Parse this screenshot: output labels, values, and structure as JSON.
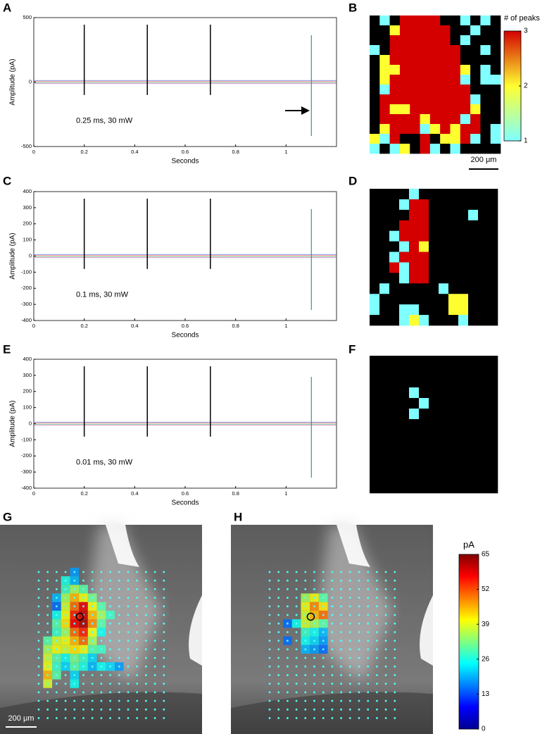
{
  "chart_data": [
    {
      "type": "line",
      "panel": "A",
      "ylabel": "Amplitude (pA)",
      "xlabel": "Seconds",
      "annotation": "0.25 ms, 30 mW",
      "xlim": [
        0,
        1.2
      ],
      "xticks": [
        0,
        0.2,
        0.4,
        0.6,
        0.8,
        1
      ],
      "ylim": [
        -500,
        500
      ],
      "yticks": [
        -500,
        0,
        500
      ],
      "stimuli": [
        0.2,
        0.45,
        0.7
      ]
    },
    {
      "type": "heatmap",
      "panel": "B",
      "colorbar_label": "# of peaks",
      "clim": [
        1,
        3
      ],
      "cticks": [
        1,
        2,
        3
      ],
      "scalebar": "200 μm",
      "colors": [
        "#7fffff",
        "#ffff30",
        "#d40000"
      ],
      "zero_color": "#000000",
      "cells": [
        [
          0,
          1,
          0,
          3,
          3,
          3,
          3,
          0,
          0,
          1,
          0,
          1,
          0
        ],
        [
          0,
          0,
          2,
          3,
          3,
          3,
          3,
          3,
          0,
          0,
          1,
          0,
          0
        ],
        [
          0,
          0,
          3,
          3,
          3,
          3,
          3,
          3,
          0,
          1,
          0,
          0,
          0
        ],
        [
          1,
          0,
          3,
          3,
          3,
          3,
          3,
          3,
          3,
          0,
          0,
          1,
          0
        ],
        [
          0,
          2,
          3,
          3,
          3,
          3,
          3,
          3,
          3,
          0,
          0,
          0,
          0
        ],
        [
          0,
          2,
          2,
          3,
          3,
          3,
          3,
          3,
          3,
          2,
          0,
          1,
          0
        ],
        [
          0,
          2,
          3,
          3,
          3,
          3,
          3,
          3,
          3,
          1,
          0,
          1,
          1
        ],
        [
          0,
          1,
          3,
          3,
          3,
          3,
          3,
          3,
          3,
          3,
          0,
          0,
          0
        ],
        [
          0,
          3,
          3,
          3,
          3,
          3,
          3,
          3,
          3,
          3,
          1,
          0,
          0
        ],
        [
          0,
          3,
          2,
          2,
          3,
          3,
          3,
          3,
          3,
          3,
          2,
          0,
          0
        ],
        [
          0,
          3,
          3,
          3,
          3,
          2,
          3,
          3,
          3,
          1,
          3,
          0,
          0
        ],
        [
          0,
          2,
          3,
          3,
          3,
          1,
          2,
          3,
          2,
          3,
          3,
          0,
          1
        ],
        [
          2,
          1,
          3,
          0,
          0,
          3,
          0,
          2,
          2,
          3,
          1,
          0,
          1
        ],
        [
          1,
          0,
          1,
          2,
          0,
          3,
          1,
          0,
          1,
          0,
          0,
          0,
          0
        ]
      ]
    },
    {
      "type": "line",
      "panel": "C",
      "ylabel": "Amplitude (pA)",
      "xlabel": "Seconds",
      "annotation": "0.1 ms, 30 mW",
      "xlim": [
        0,
        1.2
      ],
      "xticks": [
        0,
        0.2,
        0.4,
        0.6,
        0.8,
        1
      ],
      "ylim": [
        -400,
        400
      ],
      "yticks": [
        -400,
        -300,
        -200,
        -100,
        0,
        100,
        200,
        300,
        400
      ],
      "stimuli": [
        0.2,
        0.45,
        0.7
      ]
    },
    {
      "type": "heatmap",
      "panel": "D",
      "clim": [
        1,
        3
      ],
      "colors": [
        "#7fffff",
        "#ffff30",
        "#d40000"
      ],
      "zero_color": "#000000",
      "cells": [
        [
          0,
          0,
          0,
          0,
          1,
          0,
          0,
          0,
          0,
          0,
          0,
          0,
          0
        ],
        [
          0,
          0,
          0,
          1,
          3,
          3,
          0,
          0,
          0,
          0,
          0,
          0,
          0
        ],
        [
          0,
          0,
          0,
          0,
          3,
          3,
          0,
          0,
          0,
          0,
          1,
          0,
          0
        ],
        [
          0,
          0,
          0,
          3,
          3,
          3,
          0,
          0,
          0,
          0,
          0,
          0,
          0
        ],
        [
          0,
          0,
          1,
          3,
          3,
          3,
          0,
          0,
          0,
          0,
          0,
          0,
          0
        ],
        [
          0,
          0,
          0,
          1,
          3,
          2,
          0,
          0,
          0,
          0,
          0,
          0,
          0
        ],
        [
          0,
          0,
          1,
          3,
          3,
          3,
          0,
          0,
          0,
          0,
          0,
          0,
          0
        ],
        [
          0,
          0,
          3,
          1,
          3,
          3,
          0,
          0,
          0,
          0,
          0,
          0,
          0
        ],
        [
          0,
          0,
          0,
          1,
          3,
          3,
          0,
          0,
          0,
          0,
          0,
          0,
          0
        ],
        [
          0,
          1,
          0,
          0,
          0,
          0,
          0,
          1,
          0,
          0,
          0,
          0,
          0
        ],
        [
          1,
          0,
          0,
          0,
          0,
          0,
          0,
          0,
          2,
          2,
          0,
          0,
          0
        ],
        [
          1,
          0,
          0,
          1,
          1,
          0,
          0,
          0,
          2,
          2,
          0,
          0,
          0
        ],
        [
          0,
          0,
          0,
          1,
          2,
          1,
          0,
          0,
          0,
          1,
          0,
          0,
          0
        ]
      ]
    },
    {
      "type": "line",
      "panel": "E",
      "ylabel": "Amplitude (pA)",
      "xlabel": "Seconds",
      "annotation": "0.01 ms, 30 mW",
      "xlim": [
        0,
        1.2
      ],
      "xticks": [
        0,
        0.2,
        0.4,
        0.6,
        0.8,
        1
      ],
      "ylim": [
        -400,
        400
      ],
      "yticks": [
        -400,
        -300,
        -200,
        -100,
        0,
        100,
        200,
        300,
        400
      ],
      "stimuli": [
        0.2,
        0.45,
        0.7
      ]
    },
    {
      "type": "heatmap",
      "panel": "F",
      "clim": [
        1,
        3
      ],
      "colors": [
        "#7fffff",
        "#ffff30",
        "#d40000"
      ],
      "zero_color": "#000000",
      "cells": [
        [
          0,
          0,
          0,
          0,
          0,
          0,
          0,
          0,
          0,
          0,
          0,
          0,
          0
        ],
        [
          0,
          0,
          0,
          0,
          0,
          0,
          0,
          0,
          0,
          0,
          0,
          0,
          0
        ],
        [
          0,
          0,
          0,
          0,
          0,
          0,
          0,
          0,
          0,
          0,
          0,
          0,
          0
        ],
        [
          0,
          0,
          0,
          0,
          1,
          0,
          0,
          0,
          0,
          0,
          0,
          0,
          0
        ],
        [
          0,
          0,
          0,
          0,
          0,
          1,
          0,
          0,
          0,
          0,
          0,
          0,
          0
        ],
        [
          0,
          0,
          0,
          0,
          1,
          0,
          0,
          0,
          0,
          0,
          0,
          0,
          0
        ],
        [
          0,
          0,
          0,
          0,
          0,
          0,
          0,
          0,
          0,
          0,
          0,
          0,
          0
        ],
        [
          0,
          0,
          0,
          0,
          0,
          0,
          0,
          0,
          0,
          0,
          0,
          0,
          0
        ],
        [
          0,
          0,
          0,
          0,
          0,
          0,
          0,
          0,
          0,
          0,
          0,
          0,
          0
        ],
        [
          0,
          0,
          0,
          0,
          0,
          0,
          0,
          0,
          0,
          0,
          0,
          0,
          0
        ],
        [
          0,
          0,
          0,
          0,
          0,
          0,
          0,
          0,
          0,
          0,
          0,
          0,
          0
        ],
        [
          0,
          0,
          0,
          0,
          0,
          0,
          0,
          0,
          0,
          0,
          0,
          0,
          0
        ],
        [
          0,
          0,
          0,
          0,
          0,
          0,
          0,
          0,
          0,
          0,
          0,
          0,
          0
        ]
      ]
    },
    {
      "type": "map",
      "panel": "G",
      "clim": [
        0,
        65
      ],
      "colormap": "jet",
      "scalebar": "200 μm",
      "cells": [
        [
          0,
          4,
          18
        ],
        [
          1,
          3,
          26
        ],
        [
          1,
          4,
          20
        ],
        [
          2,
          3,
          28
        ],
        [
          2,
          4,
          35
        ],
        [
          2,
          5,
          30
        ],
        [
          3,
          2,
          20
        ],
        [
          3,
          3,
          35
        ],
        [
          3,
          4,
          45
        ],
        [
          3,
          5,
          40
        ],
        [
          3,
          6,
          32
        ],
        [
          4,
          2,
          15
        ],
        [
          4,
          3,
          38
        ],
        [
          4,
          4,
          50
        ],
        [
          4,
          5,
          58
        ],
        [
          4,
          6,
          40
        ],
        [
          4,
          7,
          30
        ],
        [
          5,
          2,
          25
        ],
        [
          5,
          3,
          40
        ],
        [
          5,
          4,
          55
        ],
        [
          5,
          5,
          60
        ],
        [
          5,
          6,
          45
        ],
        [
          5,
          7,
          35
        ],
        [
          5,
          8,
          28
        ],
        [
          6,
          2,
          30
        ],
        [
          6,
          3,
          42
        ],
        [
          6,
          4,
          58
        ],
        [
          6,
          5,
          62
        ],
        [
          6,
          6,
          48
        ],
        [
          6,
          7,
          30
        ],
        [
          7,
          2,
          28
        ],
        [
          7,
          3,
          35
        ],
        [
          7,
          4,
          50
        ],
        [
          7,
          5,
          55
        ],
        [
          7,
          6,
          40
        ],
        [
          7,
          7,
          25
        ],
        [
          8,
          1,
          30
        ],
        [
          8,
          2,
          38
        ],
        [
          8,
          3,
          40
        ],
        [
          8,
          4,
          45
        ],
        [
          8,
          5,
          50
        ],
        [
          8,
          6,
          35
        ],
        [
          9,
          1,
          35
        ],
        [
          9,
          2,
          40
        ],
        [
          9,
          3,
          38
        ],
        [
          9,
          4,
          42
        ],
        [
          9,
          5,
          40
        ],
        [
          9,
          6,
          30
        ],
        [
          9,
          7,
          28
        ],
        [
          10,
          1,
          38
        ],
        [
          10,
          2,
          30
        ],
        [
          10,
          3,
          25
        ],
        [
          10,
          4,
          32
        ],
        [
          10,
          5,
          28
        ],
        [
          10,
          6,
          22
        ],
        [
          11,
          1,
          40
        ],
        [
          11,
          2,
          28
        ],
        [
          11,
          3,
          22
        ],
        [
          11,
          4,
          30
        ],
        [
          11,
          5,
          26
        ],
        [
          11,
          6,
          20
        ],
        [
          11,
          7,
          25
        ],
        [
          11,
          8,
          22
        ],
        [
          11,
          9,
          18
        ],
        [
          12,
          1,
          45
        ],
        [
          12,
          2,
          30
        ],
        [
          12,
          4,
          22
        ],
        [
          13,
          1,
          38
        ],
        [
          13,
          4,
          25
        ]
      ]
    },
    {
      "type": "map",
      "panel": "H",
      "clim": [
        0,
        65
      ],
      "colormap": "jet",
      "colorbar_label": "pA",
      "cticks": [
        0,
        13,
        26,
        39,
        52,
        65
      ],
      "cells": [
        [
          3,
          4,
          35
        ],
        [
          3,
          5,
          40
        ],
        [
          3,
          6,
          30
        ],
        [
          4,
          4,
          40
        ],
        [
          4,
          5,
          48
        ],
        [
          4,
          6,
          42
        ],
        [
          5,
          4,
          38
        ],
        [
          5,
          5,
          45
        ],
        [
          5,
          6,
          50
        ],
        [
          6,
          2,
          15
        ],
        [
          6,
          3,
          25
        ],
        [
          6,
          4,
          38
        ],
        [
          6,
          5,
          35
        ],
        [
          6,
          6,
          30
        ],
        [
          7,
          4,
          28
        ],
        [
          7,
          5,
          25
        ],
        [
          7,
          6,
          20
        ],
        [
          8,
          2,
          15
        ],
        [
          8,
          4,
          25
        ],
        [
          8,
          5,
          22
        ],
        [
          8,
          6,
          18
        ],
        [
          9,
          4,
          20
        ],
        [
          9,
          5,
          18
        ],
        [
          9,
          6,
          15
        ]
      ]
    }
  ]
}
